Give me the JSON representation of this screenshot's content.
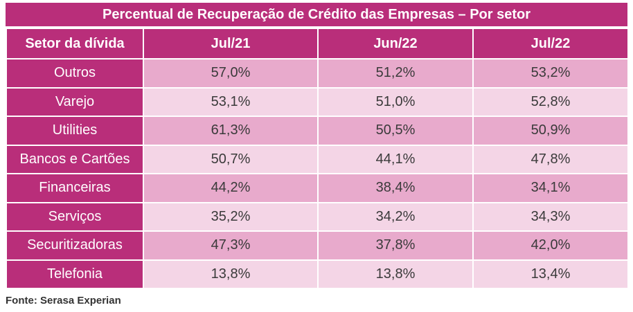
{
  "chart_data": {
    "type": "table",
    "title": "Percentual de Recuperação de Crédito das Empresas – Por setor",
    "columns": [
      "Setor da dívida",
      "Jul/21",
      "Jun/22",
      "Jul/22"
    ],
    "rows": [
      {
        "label": "Outros",
        "values": [
          "57,0%",
          "51,2%",
          "53,2%"
        ]
      },
      {
        "label": "Varejo",
        "values": [
          "53,1%",
          "51,0%",
          "52,8%"
        ]
      },
      {
        "label": "Utilities",
        "values": [
          "61,3%",
          "50,5%",
          "50,9%"
        ]
      },
      {
        "label": "Bancos e Cartões",
        "values": [
          "50,7%",
          "44,1%",
          "47,8%"
        ]
      },
      {
        "label": "Financeiras",
        "values": [
          "44,2%",
          "38,4%",
          "34,1%"
        ]
      },
      {
        "label": "Serviços",
        "values": [
          "35,2%",
          "34,2%",
          "34,3%"
        ]
      },
      {
        "label": "Securitizadoras",
        "values": [
          "47,3%",
          "37,8%",
          "42,0%"
        ]
      },
      {
        "label": "Telefonia",
        "values": [
          "13,8%",
          "13,8%",
          "13,4%"
        ]
      }
    ],
    "source": "Fonte: Serasa Experian"
  },
  "colors": {
    "header": "#b92e7a",
    "row_dark": "#e8aacc",
    "row_light": "#f4d5e6",
    "text": "#3a3a3a"
  }
}
